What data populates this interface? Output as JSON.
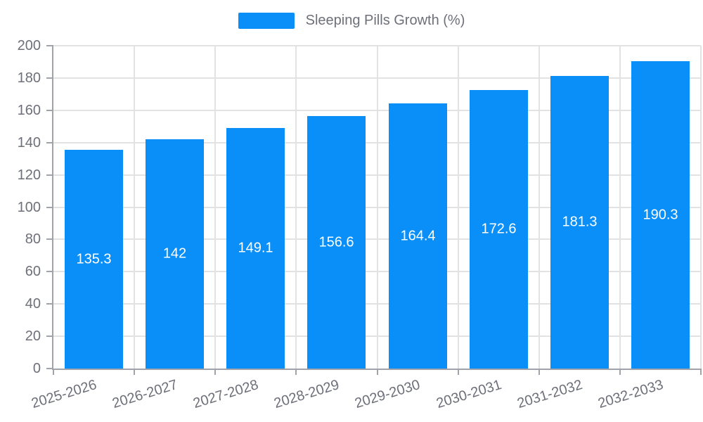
{
  "legend": {
    "label": "Sleeping Pills Growth (%)"
  },
  "chart_data": {
    "type": "bar",
    "title": "Sleeping Pills Growth (%)",
    "categories": [
      "2025-2026",
      "2026-2027",
      "2027-2028",
      "2028-2029",
      "2029-2030",
      "2030-2031",
      "2031-2032",
      "2032-2033"
    ],
    "values": [
      135.3,
      142,
      149.1,
      156.6,
      164.4,
      172.6,
      181.3,
      190.3
    ],
    "value_labels": [
      "135.3",
      "142",
      "149.1",
      "156.6",
      "164.4",
      "172.6",
      "181.3",
      "190.3"
    ],
    "xlabel": "",
    "ylabel": "",
    "ylim": [
      0,
      200
    ],
    "ytick_step": 20,
    "yticks": [
      0,
      20,
      40,
      60,
      80,
      100,
      120,
      140,
      160,
      180,
      200
    ],
    "grid": true,
    "legend_position": "top-center",
    "bar_color": "#0a8ff8",
    "value_label_color": "#ffffff"
  },
  "colors": {
    "bar": "#0a8ff8",
    "grid": "#e2e2e2",
    "axis": "#a0a3a9",
    "text": "#6e7079",
    "background": "#ffffff"
  }
}
